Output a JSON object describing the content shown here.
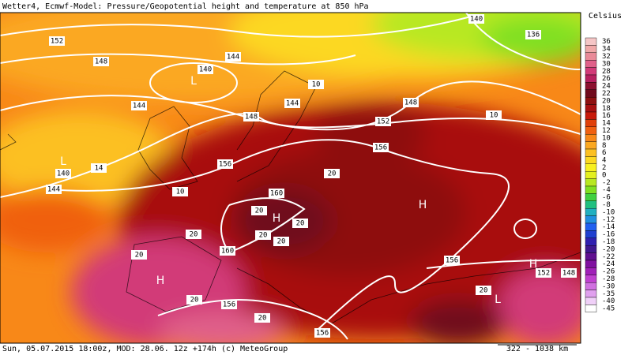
{
  "header": {
    "title": "Wetter4, Ecmwf-Model: Pressure/Geopotential height and temperature at 850 hPa"
  },
  "legend": {
    "unit": "Celsius",
    "entries": [
      {
        "label": "36",
        "color": "#f5c6c6"
      },
      {
        "label": "34",
        "color": "#f0a8a8"
      },
      {
        "label": "32",
        "color": "#e98a98"
      },
      {
        "label": "30",
        "color": "#e0608a"
      },
      {
        "label": "28",
        "color": "#d23a78"
      },
      {
        "label": "26",
        "color": "#b82060"
      },
      {
        "label": "24",
        "color": "#8c1030"
      },
      {
        "label": "22",
        "color": "#700a1c"
      },
      {
        "label": "20",
        "color": "#8e1010"
      },
      {
        "label": "18",
        "color": "#a81010"
      },
      {
        "label": "16",
        "color": "#c81a0a"
      },
      {
        "label": "14",
        "color": "#e0400a"
      },
      {
        "label": "12",
        "color": "#f06010"
      },
      {
        "label": "10",
        "color": "#f88818"
      },
      {
        "label": "8",
        "color": "#fba820"
      },
      {
        "label": "6",
        "color": "#fcc020"
      },
      {
        "label": "4",
        "color": "#fcd820"
      },
      {
        "label": "2",
        "color": "#f8f020"
      },
      {
        "label": "0",
        "color": "#e4f020"
      },
      {
        "label": "-2",
        "color": "#b8e820"
      },
      {
        "label": "-4",
        "color": "#80e020"
      },
      {
        "label": "-6",
        "color": "#40d040"
      },
      {
        "label": "-8",
        "color": "#20c080"
      },
      {
        "label": "-10",
        "color": "#20b0c0"
      },
      {
        "label": "-12",
        "color": "#2090e0"
      },
      {
        "label": "-14",
        "color": "#2060f0"
      },
      {
        "label": "-16",
        "color": "#2040d0"
      },
      {
        "label": "-18",
        "color": "#3020b0"
      },
      {
        "label": "-20",
        "color": "#401890"
      },
      {
        "label": "-22",
        "color": "#601090"
      },
      {
        "label": "-24",
        "color": "#8010a0"
      },
      {
        "label": "-26",
        "color": "#a020b8"
      },
      {
        "label": "-28",
        "color": "#c040d0"
      },
      {
        "label": "-30",
        "color": "#d070e0"
      },
      {
        "label": "-35",
        "color": "#e0a0ee"
      },
      {
        "label": "-40",
        "color": "#f0d0f8"
      },
      {
        "label": "-45",
        "color": "#ffffff"
      }
    ]
  },
  "map": {
    "labels": [
      "152",
      "148",
      "144",
      "140",
      "L",
      "10",
      "144",
      "148",
      "10",
      "144",
      "148",
      "152",
      "156",
      "L",
      "14",
      "140",
      "156",
      "20",
      "144",
      "10",
      "160",
      "20",
      "H",
      "20",
      "H",
      "20",
      "20",
      "20",
      "160",
      "20",
      "156",
      "H",
      "H",
      "152",
      "148",
      "20",
      "156",
      "20",
      "L",
      "20",
      "156",
      "140",
      "136"
    ]
  },
  "footer": {
    "info": "Sun, 05.07.2015 18:00z, MOD: 28.06. 12z +174h (c) MeteoGroup",
    "scale": "322 - 1038 km"
  }
}
